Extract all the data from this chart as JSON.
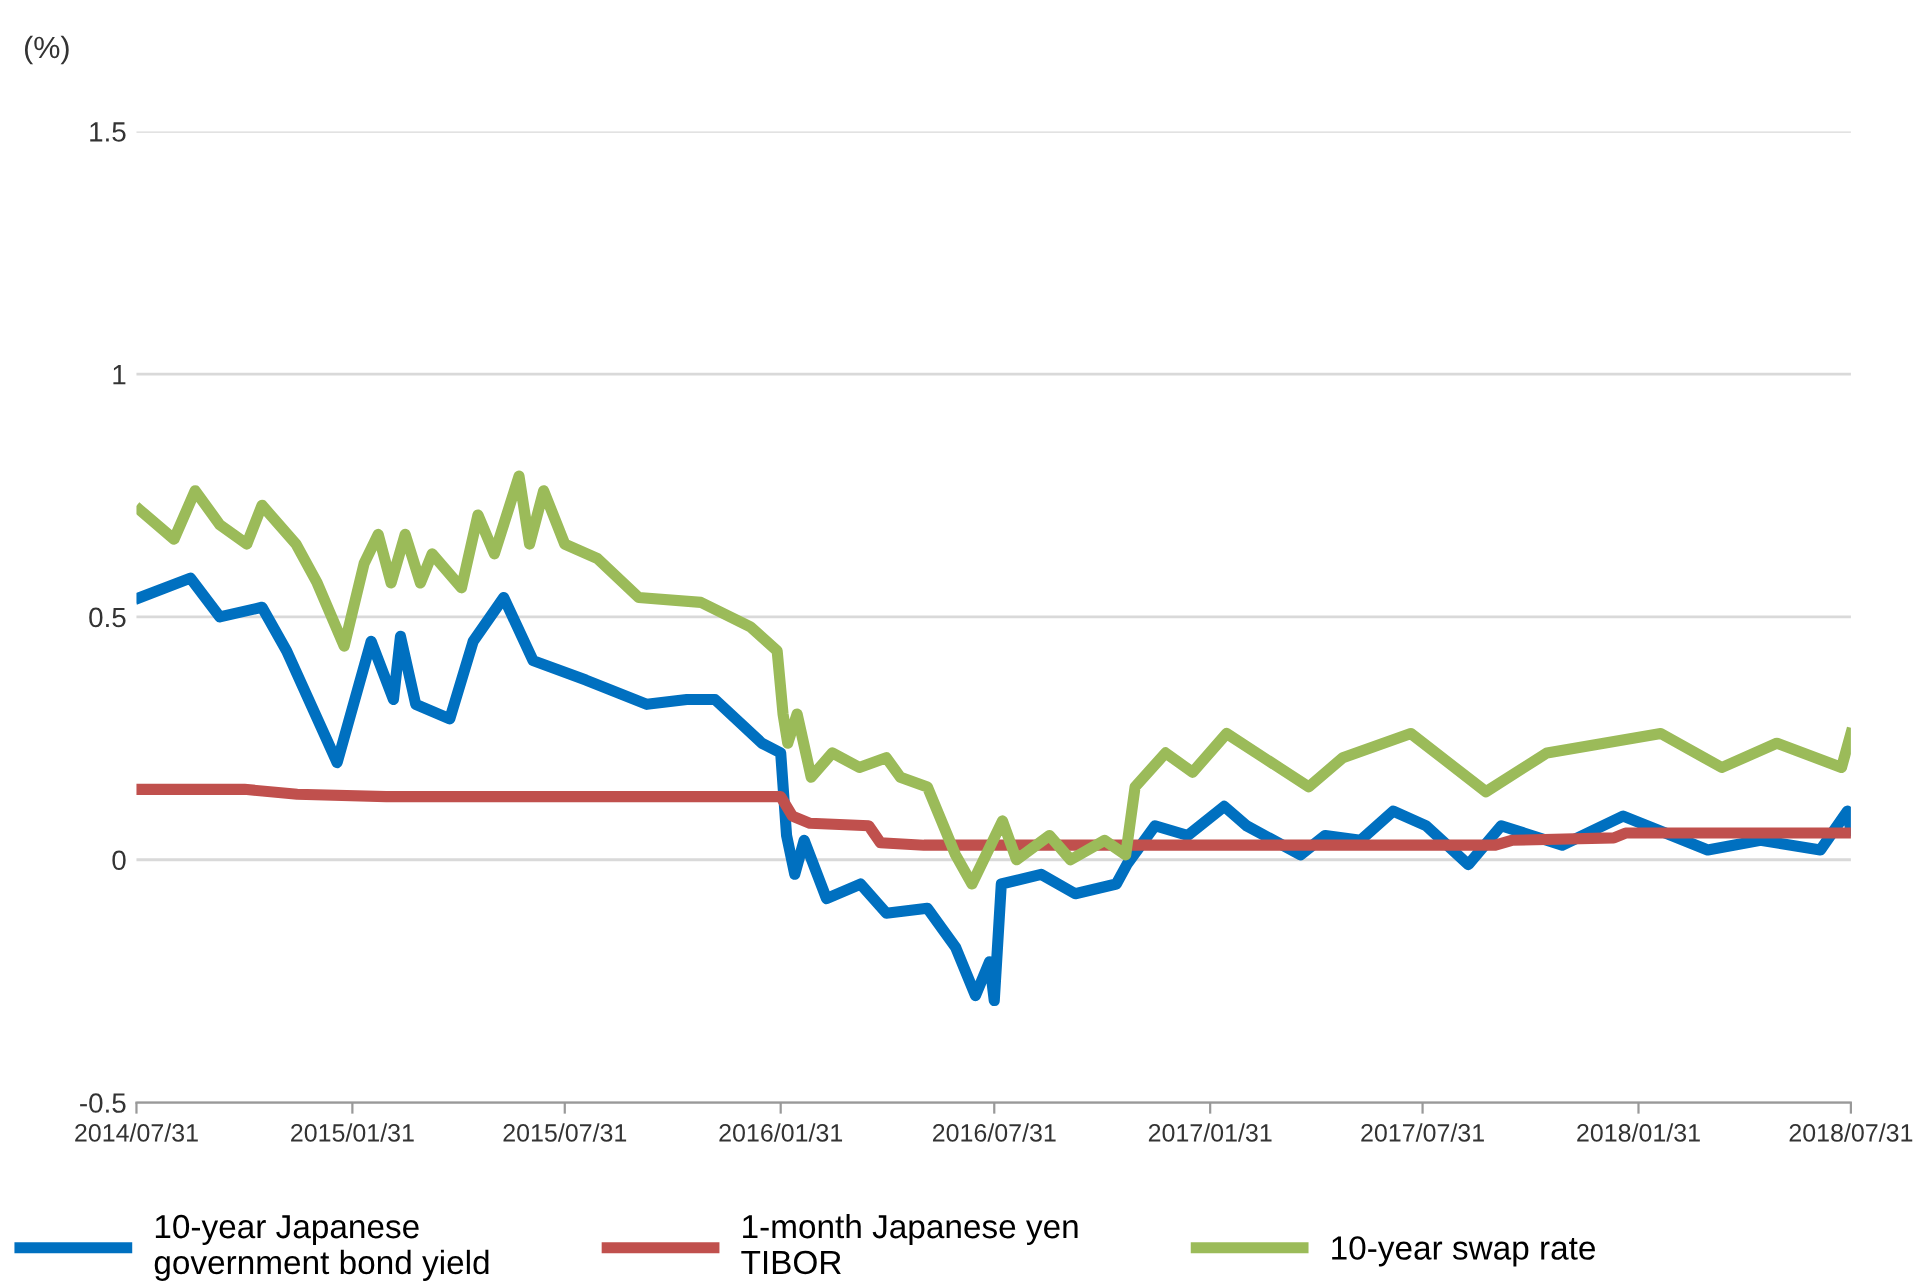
{
  "chart_data": {
    "type": "line",
    "ylabel": "(%)",
    "legend": "bottom",
    "grid": "y",
    "line_style": "solid",
    "marker": "none",
    "xlim": [
      "2014-07-31",
      "2018-07-31"
    ],
    "xticks": [
      {
        "value": "2014-07-31",
        "label": "2014/07/31"
      },
      {
        "value": "2015-01-31",
        "label": "2015/01/31"
      },
      {
        "value": "2015-07-31",
        "label": "2015/07/31"
      },
      {
        "value": "2016-01-31",
        "label": "2016/01/31"
      },
      {
        "value": "2016-07-31",
        "label": "2016/07/31"
      },
      {
        "value": "2017-01-31",
        "label": "2017/01/31"
      },
      {
        "value": "2017-07-31",
        "label": "2017/07/31"
      },
      {
        "value": "2018-01-31",
        "label": "2018/01/31"
      },
      {
        "value": "2018-07-31",
        "label": "2018/07/31"
      }
    ],
    "ylim": [
      -0.5,
      1.5
    ],
    "yticks": [
      -0.5,
      0,
      0.5,
      1,
      1.5
    ],
    "series": [
      {
        "name": "10-year Japanese\ngovernment bond yield",
        "color": "#0070c0",
        "x": [
          "2014-08-03",
          "2014-09-15",
          "2014-10-10",
          "2014-11-15",
          "2014-12-06",
          "2015-01-18",
          "2015-02-16",
          "2015-03-07",
          "2015-03-13",
          "2015-03-26",
          "2015-04-24",
          "2015-05-14",
          "2015-06-09",
          "2015-07-04",
          "2015-08-18",
          "2015-10-09",
          "2015-11-12",
          "2015-12-06",
          "2016-01-15",
          "2016-01-31",
          "2016-02-05",
          "2016-02-12",
          "2016-02-20",
          "2016-03-10",
          "2016-04-08",
          "2016-04-30",
          "2016-06-04",
          "2016-06-28",
          "2016-07-15",
          "2016-07-27",
          "2016-07-31",
          "2016-08-06",
          "2016-09-09",
          "2016-10-08",
          "2016-11-12",
          "2016-11-21",
          "2016-12-15",
          "2017-01-12",
          "2017-02-12",
          "2017-03-03",
          "2017-04-18",
          "2017-05-09",
          "2017-06-08",
          "2017-07-06",
          "2017-08-03",
          "2017-09-08",
          "2017-10-06",
          "2017-11-27",
          "2018-01-18",
          "2018-03-31",
          "2018-05-15",
          "2018-07-05",
          "2018-07-28",
          "2018-07-31"
        ],
        "values": [
          0.54,
          0.58,
          0.5,
          0.52,
          0.43,
          0.2,
          0.45,
          0.33,
          0.46,
          0.32,
          0.29,
          0.45,
          0.54,
          0.41,
          0.37,
          0.32,
          0.33,
          0.33,
          0.24,
          0.22,
          0.05,
          -0.03,
          0.04,
          -0.08,
          -0.05,
          -0.11,
          -0.1,
          -0.18,
          -0.28,
          -0.21,
          -0.29,
          -0.05,
          -0.03,
          -0.07,
          -0.05,
          -0.01,
          0.07,
          0.05,
          0.11,
          0.07,
          0.01,
          0.05,
          0.04,
          0.1,
          0.07,
          -0.01,
          0.07,
          0.03,
          0.09,
          0.02,
          0.04,
          0.02,
          0.1,
          0.06
        ]
      },
      {
        "name": "1-month Japanese yen\nTIBOR",
        "color": "#c0504d",
        "x": [
          "2014-07-31",
          "2014-10-31",
          "2014-12-15",
          "2015-03-01",
          "2016-01-31",
          "2016-02-10",
          "2016-02-25",
          "2016-04-15",
          "2016-04-25",
          "2016-06-01",
          "2017-10-01",
          "2017-10-15",
          "2018-01-10",
          "2018-01-20",
          "2018-07-31"
        ],
        "values": [
          0.145,
          0.145,
          0.135,
          0.13,
          0.13,
          0.09,
          0.075,
          0.07,
          0.035,
          0.03,
          0.03,
          0.04,
          0.045,
          0.055,
          0.055
        ]
      },
      {
        "name": "10-year swap rate",
        "color": "#9bbb59",
        "x": [
          "2014-08-03",
          "2014-09-01",
          "2014-09-19",
          "2014-10-10",
          "2014-11-02",
          "2014-11-15",
          "2014-12-14",
          "2015-01-01",
          "2015-01-24",
          "2015-02-10",
          "2015-02-22",
          "2015-03-05",
          "2015-03-17",
          "2015-03-30",
          "2015-04-09",
          "2015-05-04",
          "2015-05-18",
          "2015-06-01",
          "2015-06-22",
          "2015-07-01",
          "2015-07-13",
          "2015-07-31",
          "2015-08-28",
          "2015-10-02",
          "2015-11-24",
          "2016-01-05",
          "2016-01-28",
          "2016-02-02",
          "2016-02-06",
          "2016-02-14",
          "2016-02-26",
          "2016-03-15",
          "2016-04-07",
          "2016-04-30",
          "2016-05-12",
          "2016-06-04",
          "2016-06-28",
          "2016-07-12",
          "2016-08-07",
          "2016-08-19",
          "2016-09-16",
          "2016-10-04",
          "2016-11-02",
          "2016-11-20",
          "2016-11-28",
          "2016-12-24",
          "2017-01-16",
          "2017-02-14",
          "2017-04-25",
          "2017-05-24",
          "2017-07-21",
          "2017-09-23",
          "2017-11-14",
          "2018-02-19",
          "2018-04-12",
          "2018-05-29",
          "2018-07-23",
          "2018-07-31"
        ],
        "values": [
          0.72,
          0.66,
          0.76,
          0.69,
          0.65,
          0.73,
          0.65,
          0.57,
          0.44,
          0.61,
          0.67,
          0.57,
          0.67,
          0.57,
          0.63,
          0.56,
          0.71,
          0.63,
          0.79,
          0.65,
          0.76,
          0.65,
          0.62,
          0.54,
          0.53,
          0.48,
          0.43,
          0.3,
          0.24,
          0.3,
          0.17,
          0.22,
          0.19,
          0.21,
          0.17,
          0.15,
          0.01,
          -0.05,
          0.08,
          0.0,
          0.05,
          0.0,
          0.04,
          0.01,
          0.15,
          0.22,
          0.18,
          0.26,
          0.15,
          0.21,
          0.26,
          0.14,
          0.22,
          0.26,
          0.19,
          0.24,
          0.19,
          0.26
        ]
      }
    ]
  }
}
